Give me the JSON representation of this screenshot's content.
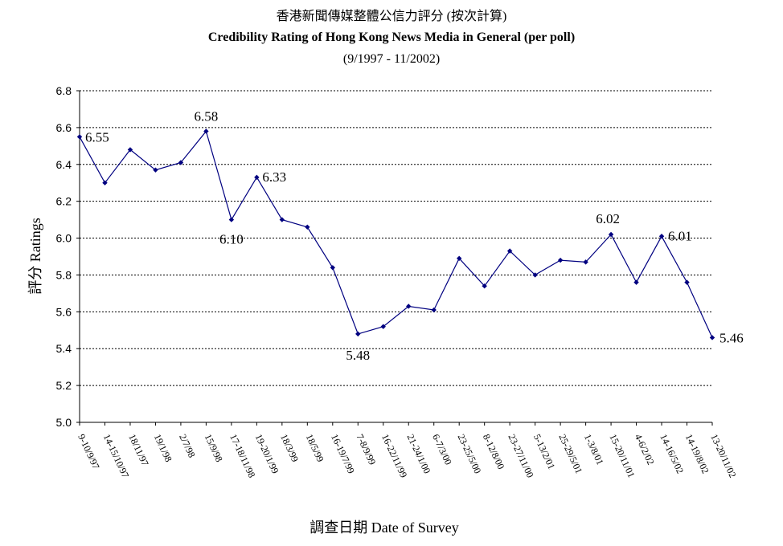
{
  "chart_data": {
    "type": "line",
    "title": "香港新聞傳媒整體公信力評分 (按次計算)",
    "subtitle": "Credibility Rating of Hong Kong News Media in General (per poll)",
    "period": "(9/1997 - 11/2002)",
    "xlabel": "調查日期 Date of Survey",
    "ylabel": "評分 Ratings",
    "ylim": [
      5.0,
      6.8
    ],
    "yticks": [
      "5.0",
      "5.2",
      "5.4",
      "5.6",
      "5.8",
      "6.0",
      "6.2",
      "6.4",
      "6.6",
      "6.8"
    ],
    "grid": true,
    "categories": [
      "9-10/9/97",
      "14-15/10/97",
      "18/11/97",
      "19/1/98",
      "2/7/98",
      "15/9/98",
      "17-18/11/98",
      "19-20/1/99",
      "18/3/99",
      "18/5/99",
      "16-19/7/99",
      "7-8/9/99",
      "16-22/11/99",
      "21-24/1/00",
      "6-7/3/00",
      "23-25/5/00",
      "8-12/8/00",
      "23-27/11/00",
      "5-13/2/01",
      "25-29/5/01",
      "1-3/8/01",
      "15-20/11/01",
      "4-6/2/02",
      "14-16/5/02",
      "14-19/8/02",
      "13-20/11/02"
    ],
    "values": [
      6.55,
      6.3,
      6.48,
      6.37,
      6.41,
      6.58,
      6.1,
      6.33,
      6.1,
      6.06,
      5.84,
      5.48,
      5.52,
      5.63,
      5.61,
      5.89,
      5.74,
      5.93,
      5.8,
      5.88,
      5.87,
      6.02,
      5.76,
      6.01,
      5.76,
      5.46
    ],
    "annotations": [
      {
        "index": 0,
        "text": "6.55"
      },
      {
        "index": 5,
        "text": "6.58"
      },
      {
        "index": 6,
        "text": "6.10"
      },
      {
        "index": 7,
        "text": "6.33"
      },
      {
        "index": 11,
        "text": "5.48"
      },
      {
        "index": 21,
        "text": "6.02"
      },
      {
        "index": 23,
        "text": "6.01"
      },
      {
        "index": 25,
        "text": "5.46"
      }
    ],
    "colors": {
      "line": "#000080",
      "marker": "#000080",
      "grid": "#000000"
    }
  }
}
